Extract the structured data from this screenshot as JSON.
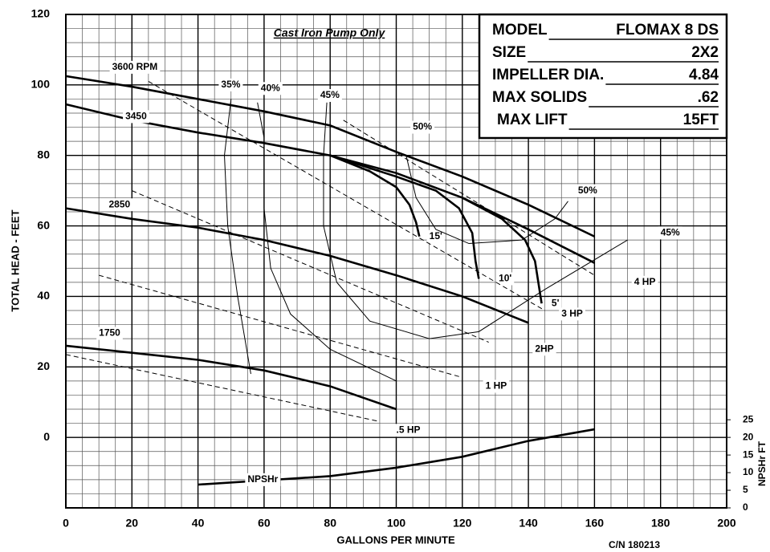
{
  "chart_data": {
    "type": "line",
    "title": "Cast Iron Pump Only",
    "xlabel": "GALLONS PER MINUTE",
    "ylabel": "TOTAL HEAD - FEET",
    "y2label": "NPSHr FT",
    "note": "C/N 180213",
    "xlim": [
      0,
      200
    ],
    "xticks": [
      0,
      20,
      40,
      60,
      80,
      100,
      120,
      140,
      160,
      180,
      200
    ],
    "ylim": [
      -20,
      120
    ],
    "yticks": [
      0,
      20,
      40,
      60,
      80,
      100,
      120
    ],
    "y2lim": [
      0,
      140
    ],
    "y2ticks": [
      0,
      5,
      10,
      15,
      20,
      25
    ],
    "xminor": [
      5,
      10,
      15,
      25,
      30,
      35,
      45,
      50,
      55,
      65,
      70,
      75,
      85,
      90,
      95,
      105,
      110,
      115,
      125,
      130,
      135,
      145,
      150,
      155,
      165,
      170,
      175,
      185,
      190,
      195
    ],
    "yminor": [
      -20,
      -16,
      -12,
      -8,
      -4,
      4,
      8,
      12,
      16,
      24,
      28,
      32,
      36,
      44,
      48,
      52,
      56,
      64,
      68,
      72,
      76,
      84,
      88,
      92,
      96,
      104,
      108,
      112,
      116
    ],
    "grid": true,
    "color": "#000000",
    "series": [
      {
        "name": "3600 RPM",
        "style": "thick",
        "x": [
          0,
          20,
          40,
          60,
          80,
          100,
          120,
          140,
          160
        ],
        "values": [
          102.5,
          99.5,
          96,
          92.5,
          88.5,
          81,
          74,
          66,
          57
        ]
      },
      {
        "name": "3450",
        "style": "thick",
        "x": [
          0,
          20,
          40,
          60,
          80,
          100,
          120,
          140,
          160
        ],
        "values": [
          94.5,
          90,
          86.5,
          83.5,
          80,
          75,
          68,
          59,
          49.5
        ]
      },
      {
        "name": "2850",
        "style": "thick",
        "x": [
          0,
          20,
          40,
          60,
          80,
          100,
          120,
          140
        ],
        "values": [
          65,
          62,
          59.5,
          56,
          51.5,
          46,
          40,
          32.5
        ]
      },
      {
        "name": "1750",
        "style": "thick",
        "x": [
          0,
          20,
          40,
          60,
          80,
          100
        ],
        "values": [
          26,
          24,
          22,
          19,
          14.5,
          8
        ]
      },
      {
        "name": "NPSHr",
        "style": "thick",
        "axis": "y2",
        "x": [
          40,
          60,
          80,
          100,
          120,
          140,
          160
        ],
        "values": [
          6.6,
          7.8,
          9,
          11.4,
          14.5,
          19,
          22.3
        ]
      },
      {
        "name": "15'",
        "style": "thick",
        "x": [
          80,
          92,
          100,
          104,
          106,
          107
        ],
        "values": [
          80,
          75.5,
          71,
          66,
          61,
          57
        ]
      },
      {
        "name": "10'",
        "style": "thick",
        "x": [
          80,
          100,
          112,
          119,
          123,
          124,
          125
        ],
        "values": [
          80,
          74,
          70,
          65,
          58,
          50,
          45
        ]
      },
      {
        "name": "5'",
        "style": "thick",
        "x": [
          120,
          132,
          139,
          142,
          143,
          144
        ],
        "values": [
          68,
          62,
          56,
          50,
          44,
          38
        ]
      },
      {
        "name": "35%",
        "style": "thin",
        "x": [
          50,
          48,
          49,
          52,
          56
        ],
        "values": [
          96,
          80,
          60,
          40,
          18
        ]
      },
      {
        "name": "40%",
        "style": "thin",
        "x": [
          58,
          60,
          60,
          62,
          68,
          80,
          100
        ],
        "values": [
          95,
          85,
          65,
          48,
          35,
          25,
          16
        ]
      },
      {
        "name": "45%",
        "style": "thin",
        "x": [
          79,
          78,
          78,
          82,
          92,
          110,
          125,
          145,
          170
        ],
        "values": [
          95,
          80,
          60,
          44,
          33,
          28,
          30,
          42,
          56
        ]
      },
      {
        "name": "50%",
        "style": "thin",
        "x": [
          103,
          106,
          112,
          122,
          138,
          148,
          152
        ],
        "values": [
          80,
          68,
          59,
          55,
          56,
          62,
          67
        ]
      },
      {
        "name": "4 HP",
        "style": "dashed",
        "x": [
          84,
          160
        ],
        "values": [
          90,
          46
        ]
      },
      {
        "name": "3 HP",
        "style": "dashed",
        "x": [
          25,
          145
        ],
        "values": [
          101,
          36
        ]
      },
      {
        "name": "2HP",
        "style": "dashed",
        "x": [
          20,
          128
        ],
        "values": [
          70,
          27
        ]
      },
      {
        "name": "1 HP",
        "style": "dashed",
        "x": [
          10,
          120
        ],
        "values": [
          46,
          17
        ]
      },
      {
        "name": ".5 HP",
        "style": "dashed",
        "x": [
          0,
          95
        ],
        "values": [
          23.5,
          4.5
        ]
      }
    ],
    "info": [
      {
        "label": "MODEL",
        "value": "FLOMAX 8 DS"
      },
      {
        "label": "SIZE",
        "value": "2X2"
      },
      {
        "label": "IMPELLER DIA.",
        "value": "4.84"
      },
      {
        "label": "MAX SOLIDS",
        "value": ".62"
      },
      {
        "label": "MAX LIFT",
        "value": "15FT"
      }
    ]
  }
}
